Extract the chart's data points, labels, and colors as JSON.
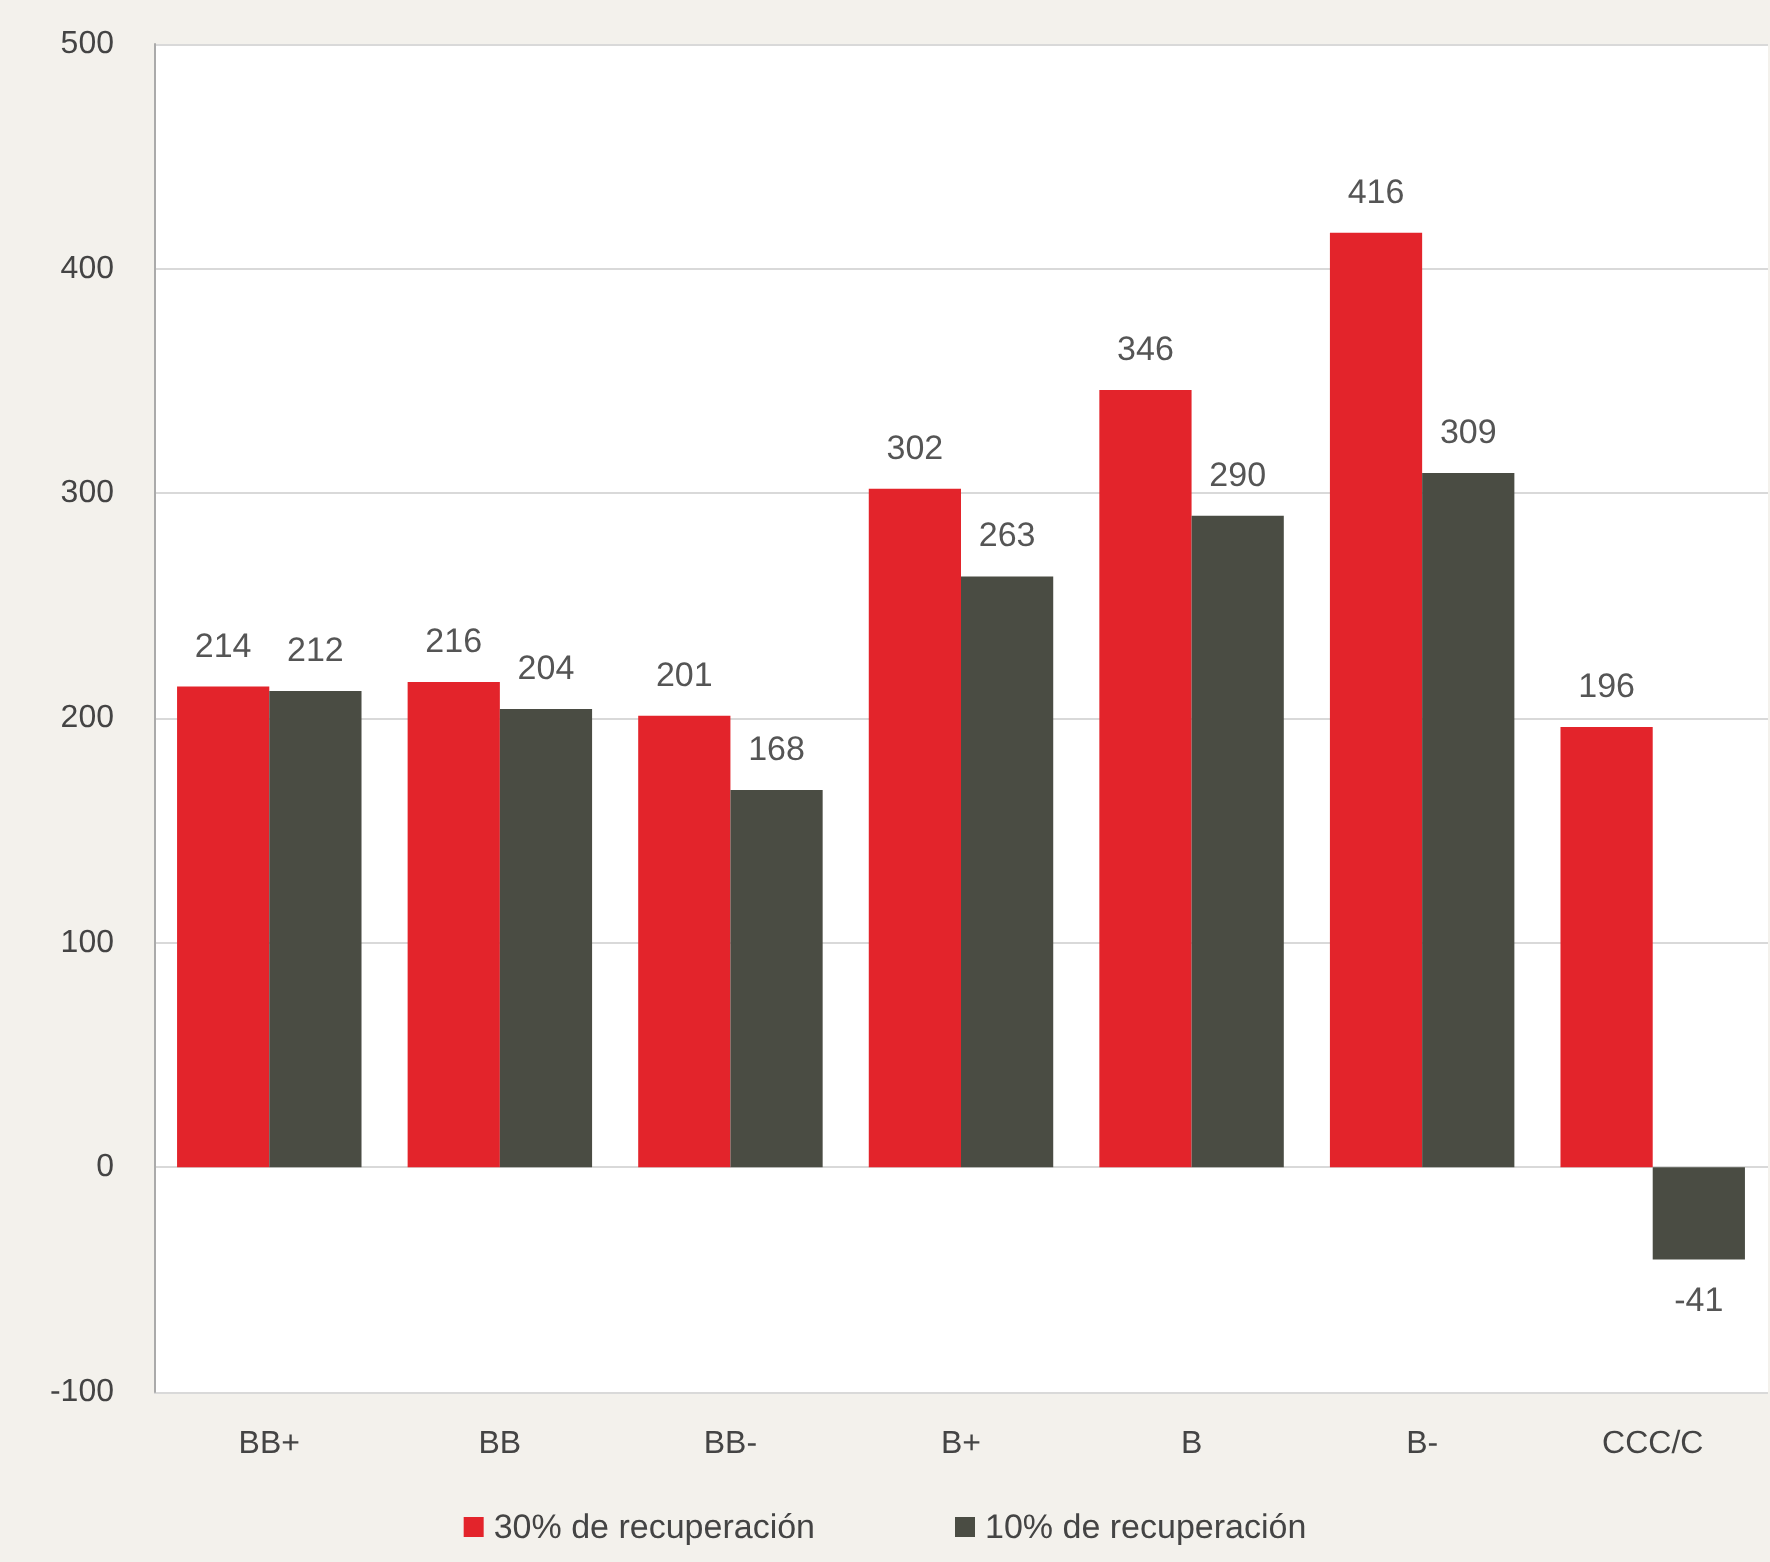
{
  "chart_data": {
    "type": "bar",
    "categories": [
      "BB+",
      "BB",
      "BB-",
      "B+",
      "B",
      "B-",
      "CCC/C"
    ],
    "series": [
      {
        "name": "30% de recuperación",
        "color": "#e3242b",
        "values": [
          214,
          216,
          201,
          302,
          346,
          416,
          196
        ]
      },
      {
        "name": "10% de recuperación",
        "color": "#4a4c43",
        "values": [
          212,
          204,
          168,
          263,
          290,
          309,
          -41
        ]
      }
    ],
    "ylim": [
      -100,
      500
    ],
    "yticks": [
      -100,
      0,
      100,
      200,
      300,
      400,
      500
    ],
    "grid": "y",
    "legend": "bottom",
    "data_labels": true
  }
}
